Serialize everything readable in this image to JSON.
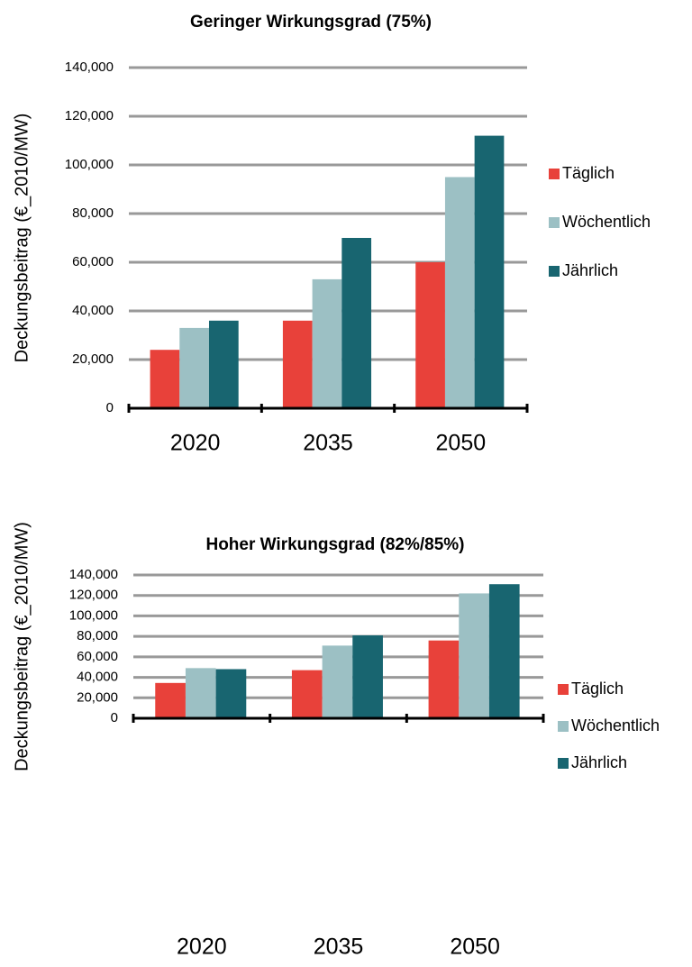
{
  "chart_data": [
    {
      "type": "bar",
      "title": "Geringer Wirkungsgrad (75%)",
      "y_label": "Deckungsbeitrag (€_2010/MW)",
      "categories": [
        "2020",
        "2035",
        "2050"
      ],
      "series": [
        {
          "name": "Täglich",
          "color": "#e8413a",
          "values": [
            24000,
            36000,
            60000
          ]
        },
        {
          "name": "Wöchentlich",
          "color": "#9cc0c4",
          "values": [
            33000,
            53000,
            95000
          ]
        },
        {
          "name": "Jährlich",
          "color": "#186570",
          "values": [
            36000,
            70000,
            112000
          ]
        }
      ],
      "ylim": [
        0,
        140000
      ],
      "yticks": [
        0,
        {
          "value": 20000,
          "label": "20,000"
        },
        {
          "value": 40000,
          "label": "40,000"
        },
        {
          "value": 60000,
          "label": "60,000"
        },
        {
          "value": 80000,
          "label": "80,000"
        },
        {
          "value": 100000,
          "label": "100,000"
        },
        {
          "value": 120000,
          "label": "120,000"
        },
        {
          "value": 140000,
          "label": "140,000"
        }
      ],
      "grid": true,
      "legend": "right"
    },
    {
      "type": "bar",
      "title": "Hoher Wirkungsgrad (82%/85%)",
      "y_label": "Deckungsbeitrag (€_2010/MW)",
      "categories": [
        "2020",
        "2035",
        "2050"
      ],
      "series": [
        {
          "name": "Täglich",
          "color": "#e8413a",
          "values": [
            34500,
            47000,
            76000
          ]
        },
        {
          "name": "Wöchentlich",
          "color": "#9cc0c4",
          "values": [
            49000,
            71000,
            122000
          ]
        },
        {
          "name": "Jährlich",
          "color": "#186570",
          "values": [
            48000,
            81000,
            131000
          ]
        }
      ],
      "ylim": [
        0,
        140000
      ],
      "yticks": [
        0,
        {
          "value": 20000,
          "label": "20,000"
        },
        {
          "value": 40000,
          "label": "40,000"
        },
        {
          "value": 60000,
          "label": "60,000"
        },
        {
          "value": 80000,
          "label": "80,000"
        },
        {
          "value": 100000,
          "label": "100,000"
        },
        {
          "value": 120000,
          "label": "120,000"
        },
        {
          "value": 140000,
          "label": "140,000"
        }
      ],
      "grid": true,
      "legend": "right"
    }
  ]
}
